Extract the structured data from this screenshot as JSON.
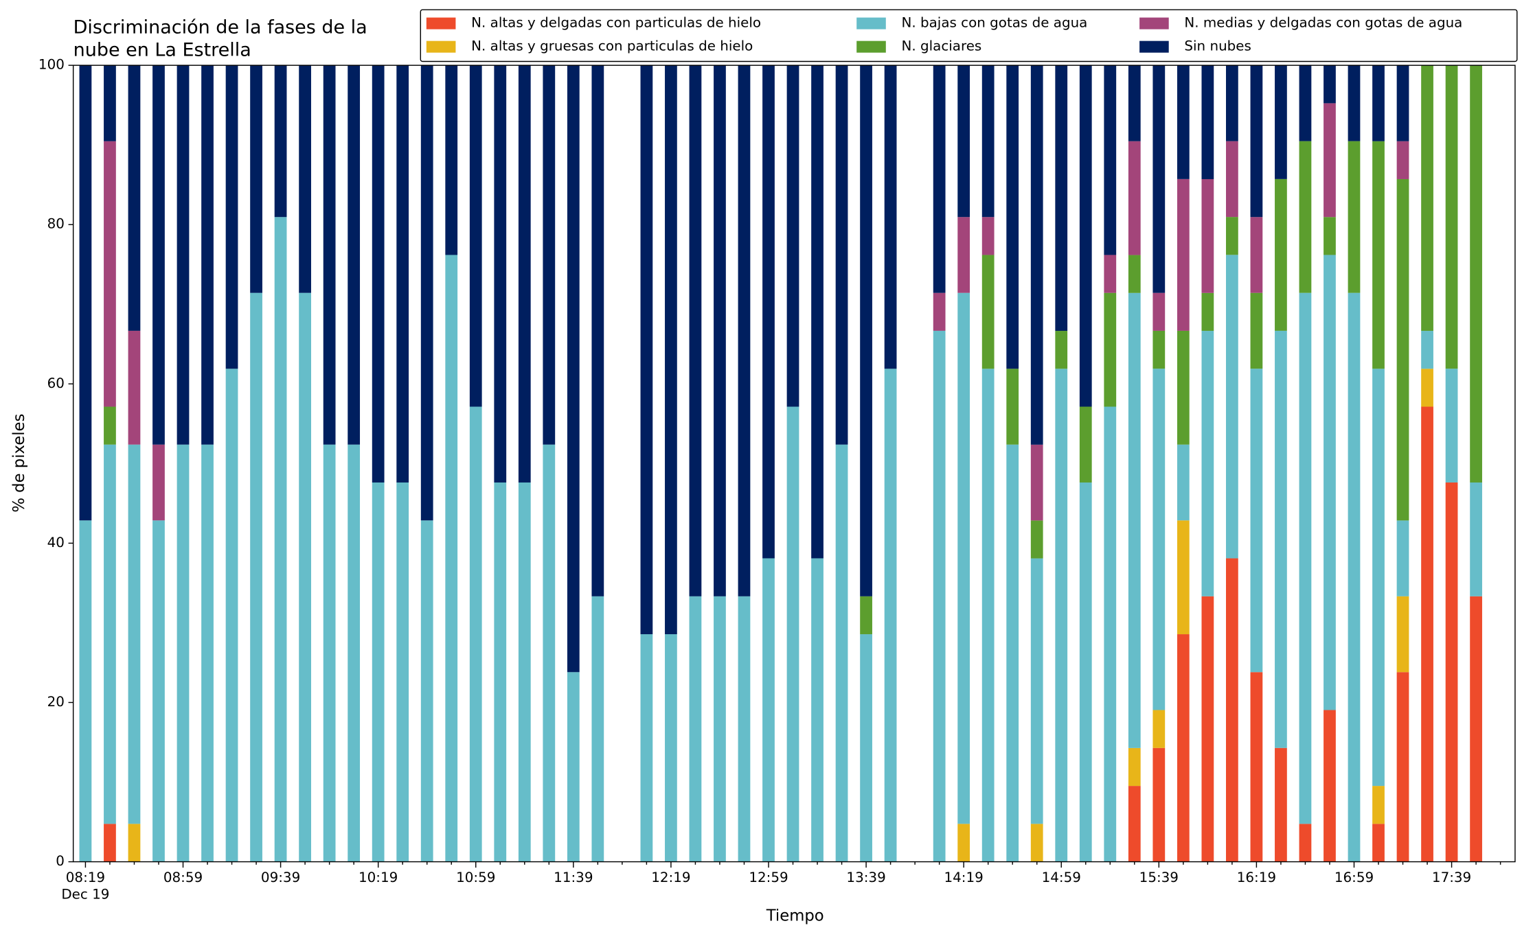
{
  "chart_data": {
    "type": "stacked_bar",
    "title": [
      "Discriminación de la fases de la",
      "nube en La Estrella"
    ],
    "xlabel": "Tiempo",
    "ylabel": "% de pixeles",
    "xdate": "Dec 19",
    "x": [
      "08:19",
      "08:29",
      "08:39",
      "08:49",
      "08:59",
      "09:09",
      "09:19",
      "09:29",
      "09:39",
      "09:49",
      "09:59",
      "10:09",
      "10:19",
      "10:29",
      "10:39",
      "10:49",
      "10:59",
      "11:09",
      "11:19",
      "11:29",
      "11:39",
      "11:49",
      "12:09",
      "12:19",
      "12:29",
      "12:39",
      "12:49",
      "12:59",
      "13:09",
      "13:19",
      "13:29",
      "13:39",
      "13:49",
      "14:09",
      "14:19",
      "14:29",
      "14:39",
      "14:49",
      "14:59",
      "15:09",
      "15:19",
      "15:29",
      "15:39",
      "15:49",
      "15:59",
      "16:09",
      "16:19",
      "16:29",
      "16:39",
      "16:49",
      "16:59",
      "17:09",
      "17:19",
      "17:29",
      "17:39",
      "17:49"
    ],
    "xlim": [
      "08:14",
      "18:05"
    ],
    "xticks": [
      "08:19",
      "08:59",
      "09:39",
      "10:19",
      "10:59",
      "11:39",
      "12:19",
      "12:59",
      "13:39",
      "14:19",
      "14:59",
      "15:39",
      "16:19",
      "16:59",
      "17:39"
    ],
    "xminorticks": [
      "08:29",
      "08:39",
      "08:49",
      "09:09",
      "09:19",
      "09:29",
      "09:49",
      "09:59",
      "10:09",
      "10:29",
      "10:39",
      "10:49",
      "11:09",
      "11:19",
      "11:29",
      "11:49",
      "11:59",
      "12:09",
      "12:29",
      "12:39",
      "12:49",
      "13:09",
      "13:19",
      "13:29",
      "13:49",
      "13:59",
      "14:09",
      "14:29",
      "14:39",
      "14:49",
      "15:09",
      "15:19",
      "15:29",
      "15:49",
      "15:59",
      "16:09",
      "16:29",
      "16:39",
      "16:49",
      "17:09",
      "17:19",
      "17:29",
      "17:49",
      "17:59"
    ],
    "ylim": [
      0,
      100
    ],
    "yticks": [
      0,
      20,
      40,
      60,
      80,
      100
    ],
    "legend": "upper right",
    "legend_columns": 3,
    "series": [
      {
        "name": "N. altas y delgadas con particulas de hielo",
        "color": "#ee4b2b",
        "values": [
          0,
          4.76,
          0,
          0,
          0,
          0,
          0,
          0,
          0,
          0,
          0,
          0,
          0,
          0,
          0,
          0,
          0,
          0,
          0,
          0,
          0,
          0,
          0,
          0,
          0,
          0,
          0,
          0,
          0,
          0,
          0,
          0,
          0,
          0,
          0,
          0,
          0,
          0,
          0,
          0,
          0,
          9.52,
          14.29,
          28.57,
          33.33,
          38.1,
          23.81,
          14.29,
          4.76,
          19.05,
          0,
          4.76,
          23.81,
          57.14,
          47.62,
          33.33
        ]
      },
      {
        "name": "N. altas y gruesas con particulas de hielo",
        "color": "#e8b519",
        "values": [
          0,
          0,
          4.76,
          0,
          0,
          0,
          0,
          0,
          0,
          0,
          0,
          0,
          0,
          0,
          0,
          0,
          0,
          0,
          0,
          0,
          0,
          0,
          0,
          0,
          0,
          0,
          0,
          0,
          0,
          0,
          0,
          0,
          0,
          0,
          4.76,
          0,
          0,
          4.76,
          0,
          0,
          0,
          4.76,
          4.76,
          14.29,
          0,
          0,
          0,
          0,
          0,
          0,
          0,
          4.76,
          9.52,
          4.76,
          0,
          0
        ]
      },
      {
        "name": "N. bajas con gotas de agua",
        "color": "#66bdc9",
        "values": [
          42.86,
          47.62,
          47.62,
          42.86,
          52.38,
          52.38,
          61.9,
          71.43,
          80.95,
          71.43,
          52.38,
          52.38,
          47.62,
          47.62,
          42.86,
          76.19,
          57.14,
          47.62,
          47.62,
          52.38,
          23.81,
          33.33,
          28.57,
          28.57,
          33.33,
          33.33,
          33.33,
          38.1,
          57.14,
          38.1,
          52.38,
          28.57,
          61.9,
          66.67,
          66.67,
          61.9,
          52.38,
          33.33,
          61.9,
          47.62,
          57.14,
          57.14,
          42.86,
          9.52,
          33.33,
          38.1,
          38.1,
          52.38,
          66.67,
          57.14,
          71.43,
          52.38,
          9.52,
          4.76,
          14.29,
          14.29
        ]
      },
      {
        "name": "N. glaciares",
        "color": "#5c9e2e",
        "values": [
          0,
          4.76,
          0,
          0,
          0,
          0,
          0,
          0,
          0,
          0,
          0,
          0,
          0,
          0,
          0,
          0,
          0,
          0,
          0,
          0,
          0,
          0,
          0,
          0,
          0,
          0,
          0,
          0,
          0,
          0,
          0,
          4.76,
          0,
          0,
          0,
          14.29,
          9.52,
          4.76,
          4.76,
          9.52,
          14.29,
          4.76,
          4.76,
          14.29,
          4.76,
          4.76,
          9.52,
          19.05,
          19.05,
          4.76,
          19.05,
          28.57,
          42.86,
          33.33,
          38.1,
          52.38
        ]
      },
      {
        "name": "N. medias y delgadas con gotas de agua",
        "color": "#a3457a",
        "values": [
          0,
          33.33,
          14.29,
          9.52,
          0,
          0,
          0,
          0,
          0,
          0,
          0,
          0,
          0,
          0,
          0,
          0,
          0,
          0,
          0,
          0,
          0,
          0,
          0,
          0,
          0,
          0,
          0,
          0,
          0,
          0,
          0,
          0,
          0,
          4.76,
          9.52,
          4.76,
          0,
          9.52,
          0,
          0,
          4.76,
          14.29,
          4.76,
          19.05,
          14.29,
          9.52,
          9.52,
          0,
          0,
          14.29,
          0,
          0,
          4.76,
          0,
          0,
          0
        ]
      },
      {
        "name": "Sin nubes",
        "color": "#001f5f",
        "values": [
          57.14,
          9.52,
          33.33,
          47.62,
          47.62,
          47.62,
          38.1,
          28.57,
          19.05,
          28.57,
          47.62,
          47.62,
          52.38,
          52.38,
          57.14,
          23.81,
          42.86,
          52.38,
          52.38,
          47.62,
          76.19,
          66.67,
          71.43,
          71.43,
          66.67,
          66.67,
          66.67,
          61.9,
          42.86,
          61.9,
          47.62,
          66.67,
          38.1,
          28.57,
          19.05,
          19.05,
          38.1,
          47.62,
          33.33,
          42.86,
          23.81,
          9.52,
          28.57,
          14.29,
          14.29,
          9.52,
          19.05,
          14.29,
          9.52,
          4.76,
          9.52,
          9.52,
          9.52,
          0,
          0,
          0
        ]
      }
    ]
  }
}
